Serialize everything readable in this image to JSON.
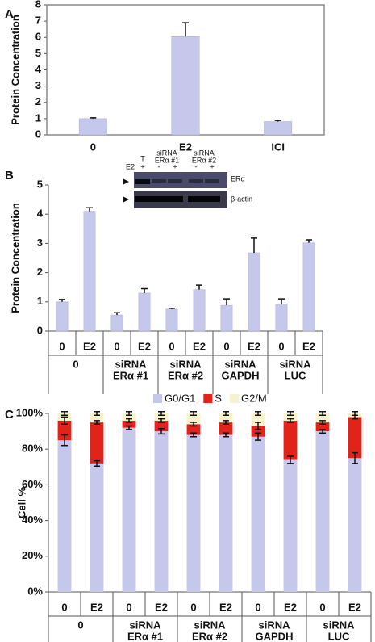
{
  "chart_data": [
    {
      "type": "bar",
      "panel_label": "A",
      "y_label": "Protein Concentration",
      "categories": [
        "0",
        "E2",
        "ICI"
      ],
      "values": [
        1.0,
        6.05,
        0.82
      ],
      "errors": [
        0.05,
        0.85,
        0.07
      ],
      "color": "#c5c8ea",
      "ylim": [
        0,
        8
      ],
      "yticks": [
        0,
        1,
        2,
        3,
        4,
        5,
        6,
        7,
        8
      ],
      "frame": "box",
      "error_style": "up"
    },
    {
      "type": "bar",
      "panel_label": "B",
      "y_label": "Protein Concentration",
      "categories": [
        "0",
        "E2",
        "0",
        "E2",
        "0",
        "E2",
        "0",
        "E2",
        "0",
        "E2"
      ],
      "groups": [
        [
          "0"
        ],
        [
          "siRNA",
          "ERα #1"
        ],
        [
          "siRNA",
          "ERα #2"
        ],
        [
          "siRNA",
          "GAPDH"
        ],
        [
          "siRNA",
          "LUC"
        ]
      ],
      "values": [
        1.0,
        4.1,
        0.55,
        1.3,
        0.75,
        1.42,
        0.88,
        2.68,
        0.92,
        3.02
      ],
      "errors": [
        0.08,
        0.12,
        0.08,
        0.15,
        0.03,
        0.15,
        0.22,
        0.5,
        0.18,
        0.1
      ],
      "color": "#c5c8ea",
      "ylim": [
        0,
        5
      ],
      "yticks": [
        0,
        1,
        2,
        3,
        4,
        5
      ],
      "frame": "axes",
      "error_style": "up",
      "inset": {
        "lane_headers": [
          [
            "T"
          ],
          [
            "siRNA",
            "ERα #1"
          ],
          [
            "siRNA",
            "ERα #2"
          ]
        ],
        "row_label": "E2",
        "row_signs": [
          "+",
          "-",
          "+",
          "-",
          "+"
        ],
        "bands": [
          "ERα",
          "β-actin"
        ]
      }
    },
    {
      "type": "stacked_bar",
      "panel_label": "C",
      "y_label": "Cell %",
      "categories": [
        "0",
        "E2",
        "0",
        "E2",
        "0",
        "E2",
        "0",
        "E2",
        "0",
        "E2"
      ],
      "groups": [
        [
          "0"
        ],
        [
          "siRNA",
          "ERα #1"
        ],
        [
          "siRNA",
          "ERα #2"
        ],
        [
          "siRNA",
          "GAPDH"
        ],
        [
          "siRNA",
          "LUC"
        ]
      ],
      "series": [
        {
          "name": "G0/G1",
          "color": "#c5c8ea",
          "values": [
            85,
            72,
            92,
            90,
            88,
            88,
            87,
            74,
            90,
            75
          ],
          "errors": [
            3,
            1.5,
            1,
            1.5,
            1,
            1,
            2,
            2,
            1,
            3
          ]
        },
        {
          "name": "S",
          "color": "#e2231a",
          "values": [
            11,
            23,
            4,
            6,
            6,
            7,
            6,
            22,
            5,
            23
          ],
          "errors": [
            2,
            1,
            1,
            1,
            1,
            1,
            2,
            1,
            1,
            1
          ]
        },
        {
          "name": "G2/M",
          "color": "#f6f3cc",
          "values": [
            4,
            5,
            4,
            4,
            6,
            5,
            7,
            4,
            5,
            2
          ],
          "errors": [
            1,
            1,
            1,
            1,
            1,
            1,
            1,
            1,
            1,
            1
          ]
        }
      ],
      "ylim": [
        0,
        100
      ],
      "yticks": [
        {
          "value": 0,
          "label": "0%"
        },
        {
          "value": 20,
          "label": "20%"
        },
        {
          "value": 40,
          "label": "40%"
        },
        {
          "value": 60,
          "label": "60%"
        },
        {
          "value": 80,
          "label": "80%"
        },
        {
          "value": 100,
          "label": "100%"
        }
      ],
      "frame": "axes",
      "error_style": "both",
      "legend": "top"
    }
  ]
}
